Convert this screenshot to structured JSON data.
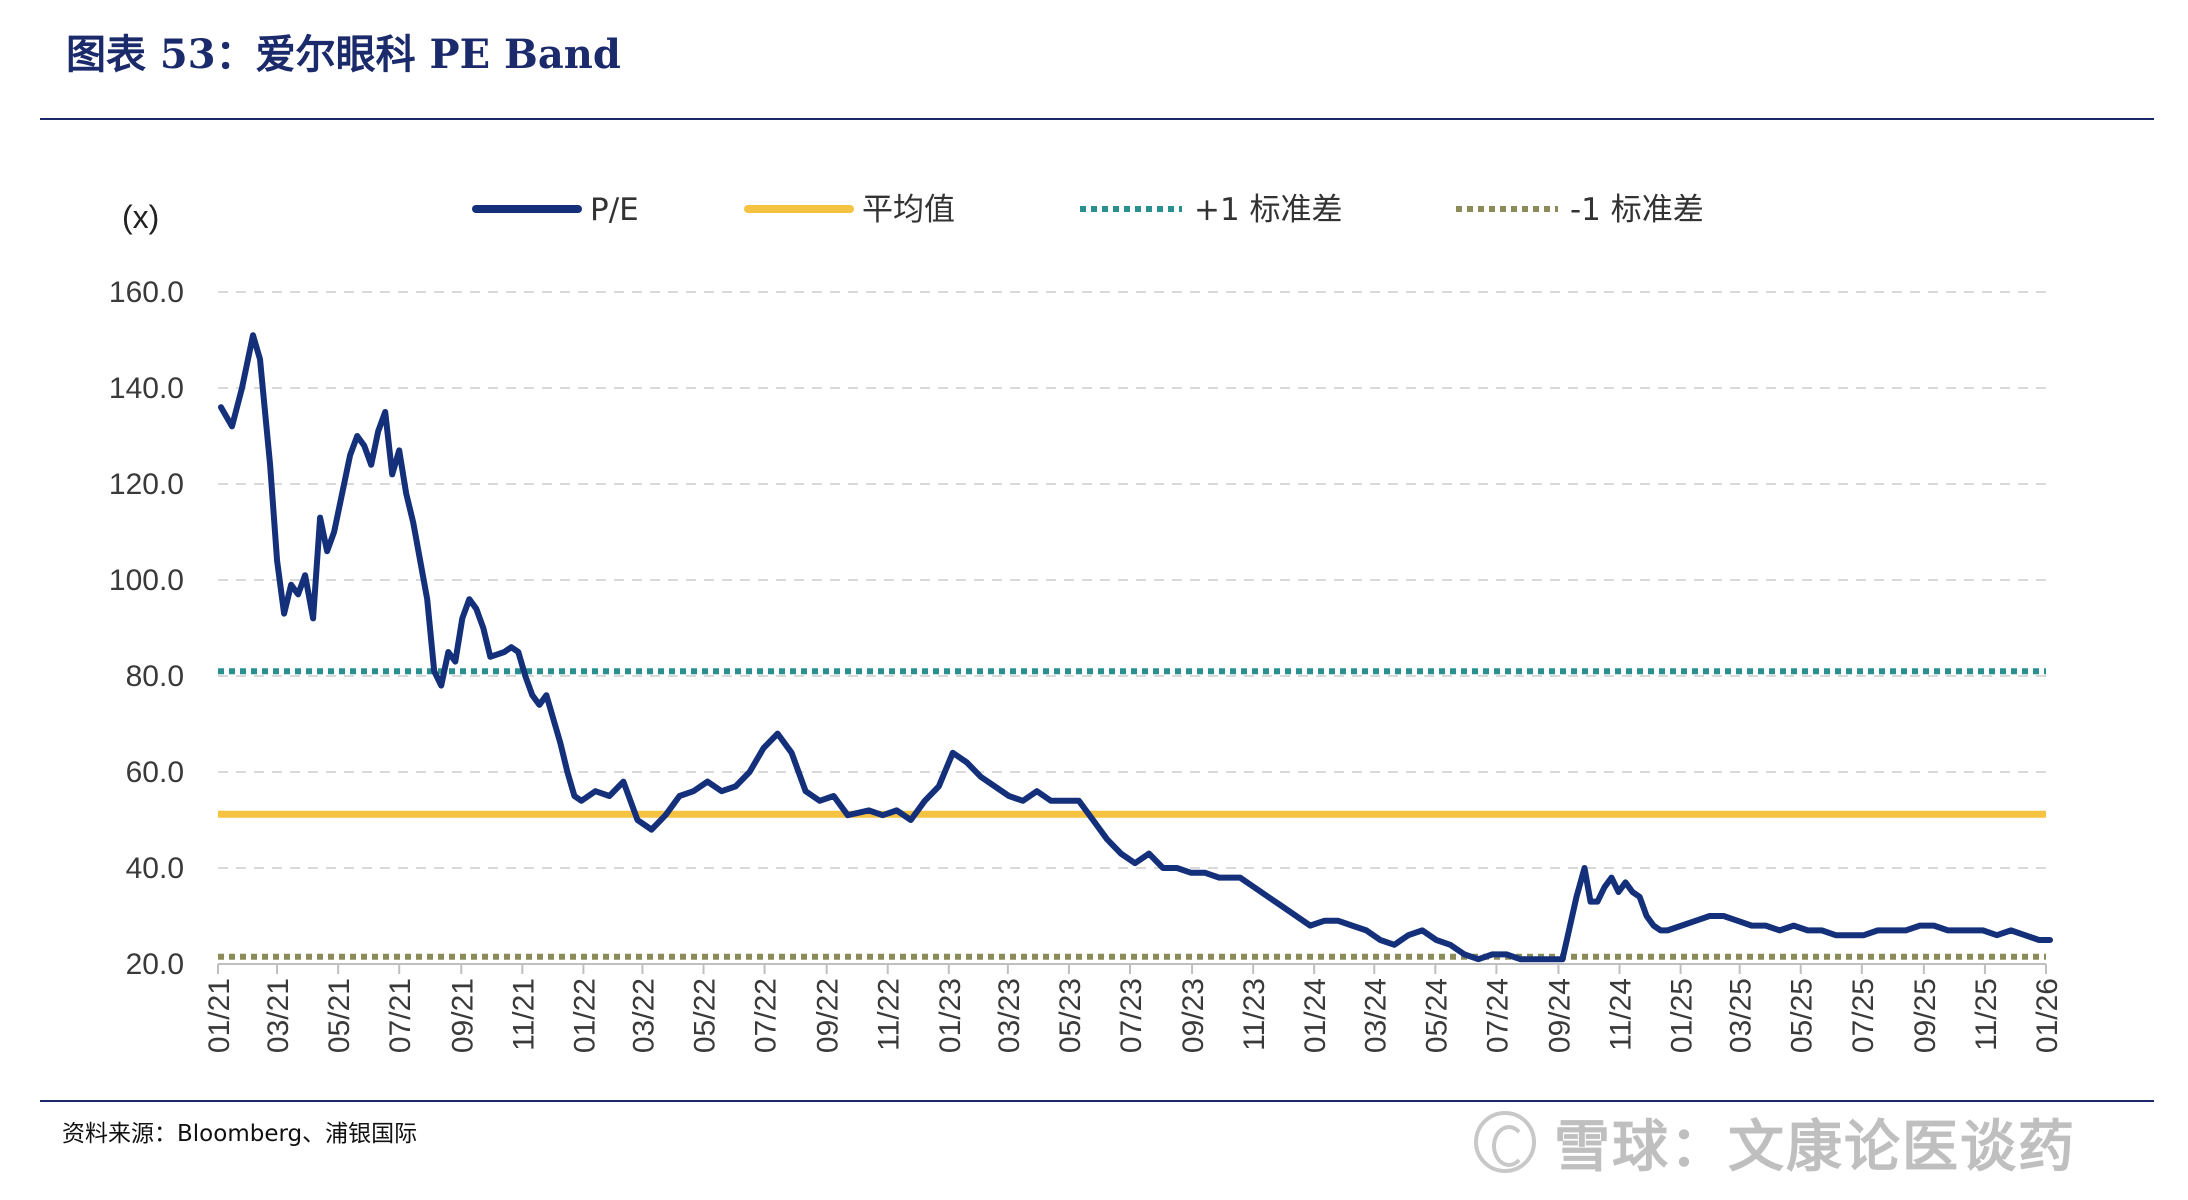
{
  "header": {
    "title": "图表 53：爱尔眼科 PE Band"
  },
  "footer": {
    "source": "资料来源：Bloomberg、浦银国际",
    "watermark": "雪球：文康论医谈药"
  },
  "colors": {
    "pe": "#14307a",
    "mean": "#f5c242",
    "plus1": "#2a8f8f",
    "minus1": "#8c8c5a",
    "grid": "#d9d9d9",
    "rule": "#1b2a6b"
  },
  "chart_data": {
    "type": "line",
    "title": "",
    "unit_label": "(x)",
    "ylim": [
      20,
      160
    ],
    "yticks": [
      20.0,
      40.0,
      60.0,
      80.0,
      100.0,
      120.0,
      140.0,
      160.0
    ],
    "ytick_labels": [
      "20.0",
      "40.0",
      "60.0",
      "80.0",
      "100.0",
      "120.0",
      "140.0",
      "160.0"
    ],
    "xlim": [
      "2021-01",
      "2026-01"
    ],
    "xtick_labels": [
      "01/21",
      "03/21",
      "05/21",
      "07/21",
      "09/21",
      "11/21",
      "01/22",
      "03/22",
      "05/22",
      "07/22",
      "09/22",
      "11/22",
      "01/23",
      "03/23",
      "05/23",
      "07/23",
      "09/23",
      "11/23",
      "01/24",
      "03/24",
      "05/24",
      "07/24",
      "09/24",
      "11/24",
      "01/25",
      "03/25",
      "05/25",
      "07/25",
      "09/25",
      "11/25",
      "01/26"
    ],
    "grid": "horizontal-dashed",
    "legend_position": "top",
    "legend": [
      {
        "name": "P/E",
        "style": "solid",
        "color_key": "pe"
      },
      {
        "name": "平均值",
        "style": "solid",
        "color_key": "mean"
      },
      {
        "name": "+1 标准差",
        "style": "dotted",
        "color_key": "plus1"
      },
      {
        "name": "-1 标准差",
        "style": "dotted",
        "color_key": "minus1"
      }
    ],
    "reference_lines": [
      {
        "name": "平均值",
        "value": 51.2
      },
      {
        "name": "+1 标准差",
        "value": 81.0
      },
      {
        "name": "-1 标准差",
        "value": 21.5
      }
    ],
    "series": [
      {
        "name": "P/E",
        "x": [
          "2021-01-04",
          "2021-01-15",
          "2021-01-25",
          "2021-02-05",
          "2021-02-12",
          "2021-02-22",
          "2021-03-01",
          "2021-03-08",
          "2021-03-15",
          "2021-03-22",
          "2021-03-29",
          "2021-04-06",
          "2021-04-13",
          "2021-04-20",
          "2021-04-27",
          "2021-05-06",
          "2021-05-13",
          "2021-05-20",
          "2021-05-27",
          "2021-06-03",
          "2021-06-10",
          "2021-06-17",
          "2021-06-24",
          "2021-07-01",
          "2021-07-08",
          "2021-07-15",
          "2021-07-22",
          "2021-07-29",
          "2021-08-05",
          "2021-08-12",
          "2021-08-19",
          "2021-08-26",
          "2021-09-02",
          "2021-09-09",
          "2021-09-16",
          "2021-09-23",
          "2021-09-30",
          "2021-10-14",
          "2021-10-21",
          "2021-10-28",
          "2021-11-04",
          "2021-11-11",
          "2021-11-18",
          "2021-11-25",
          "2021-12-02",
          "2021-12-09",
          "2021-12-16",
          "2021-12-23",
          "2021-12-30",
          "2022-01-13",
          "2022-01-27",
          "2022-02-10",
          "2022-02-24",
          "2022-03-10",
          "2022-03-24",
          "2022-04-07",
          "2022-04-21",
          "2022-05-05",
          "2022-05-19",
          "2022-06-02",
          "2022-06-16",
          "2022-06-30",
          "2022-07-14",
          "2022-07-28",
          "2022-08-11",
          "2022-08-25",
          "2022-09-08",
          "2022-09-22",
          "2022-10-13",
          "2022-10-27",
          "2022-11-10",
          "2022-11-24",
          "2022-12-08",
          "2022-12-22",
          "2023-01-05",
          "2023-01-19",
          "2023-02-02",
          "2023-02-16",
          "2023-03-02",
          "2023-03-16",
          "2023-03-30",
          "2023-04-13",
          "2023-04-27",
          "2023-05-11",
          "2023-05-25",
          "2023-06-08",
          "2023-06-22",
          "2023-07-06",
          "2023-07-20",
          "2023-08-03",
          "2023-08-17",
          "2023-08-31",
          "2023-09-14",
          "2023-09-28",
          "2023-10-19",
          "2023-11-02",
          "2023-11-16",
          "2023-11-30",
          "2023-12-14",
          "2023-12-28",
          "2024-01-11",
          "2024-01-25",
          "2024-02-08",
          "2024-02-22",
          "2024-03-07",
          "2024-03-21",
          "2024-04-04",
          "2024-04-18",
          "2024-05-02",
          "2024-05-16",
          "2024-05-30",
          "2024-06-13",
          "2024-06-27",
          "2024-07-11",
          "2024-07-25",
          "2024-08-08",
          "2024-08-22",
          "2024-09-05",
          "2024-09-19",
          "2024-09-27",
          "2024-10-03",
          "2024-10-10",
          "2024-10-17",
          "2024-10-24",
          "2024-10-31",
          "2024-11-07",
          "2024-11-14",
          "2024-11-21",
          "2024-11-28",
          "2024-12-05",
          "2024-12-12",
          "2024-12-19",
          "2025-01-02",
          "2025-01-16",
          "2025-01-30",
          "2025-02-13",
          "2025-02-27",
          "2025-03-13",
          "2025-03-27",
          "2025-04-10",
          "2025-04-24",
          "2025-05-08",
          "2025-05-22",
          "2025-06-05",
          "2025-06-19",
          "2025-07-03",
          "2025-07-17",
          "2025-07-31",
          "2025-08-14",
          "2025-08-28",
          "2025-09-11",
          "2025-09-25",
          "2025-10-16",
          "2025-10-30",
          "2025-11-13",
          "2025-11-27",
          "2025-12-11",
          "2025-12-25",
          "2026-01-05"
        ],
        "values": [
          136,
          132,
          140,
          151,
          146,
          124,
          104,
          93,
          99,
          97,
          101,
          92,
          113,
          106,
          110,
          119,
          126,
          130,
          128,
          124,
          131,
          135,
          122,
          127,
          118,
          112,
          104,
          96,
          81,
          78,
          85,
          83,
          92,
          96,
          94,
          90,
          84,
          85,
          86,
          85,
          80,
          76,
          74,
          76,
          71,
          66,
          60,
          55,
          54,
          56,
          55,
          58,
          50,
          48,
          51,
          55,
          56,
          58,
          56,
          57,
          60,
          65,
          68,
          64,
          56,
          54,
          55,
          51,
          52,
          51,
          52,
          50,
          54,
          57,
          64,
          62,
          59,
          57,
          55,
          54,
          56,
          54,
          54,
          54,
          50,
          46,
          43,
          41,
          43,
          40,
          40,
          39,
          39,
          38,
          38,
          36,
          34,
          32,
          30,
          28,
          29,
          29,
          28,
          27,
          25,
          24,
          26,
          27,
          25,
          24,
          22,
          21,
          22,
          22,
          21,
          21,
          21,
          21,
          34,
          40,
          33,
          33,
          36,
          38,
          35,
          37,
          35,
          34,
          30,
          28,
          27,
          27,
          28,
          29,
          30,
          30,
          29,
          28,
          28,
          27,
          28,
          27,
          27,
          26,
          26,
          26,
          27,
          27,
          27,
          28,
          28,
          27,
          27,
          27,
          26,
          27,
          26,
          25,
          25
        ]
      }
    ]
  }
}
